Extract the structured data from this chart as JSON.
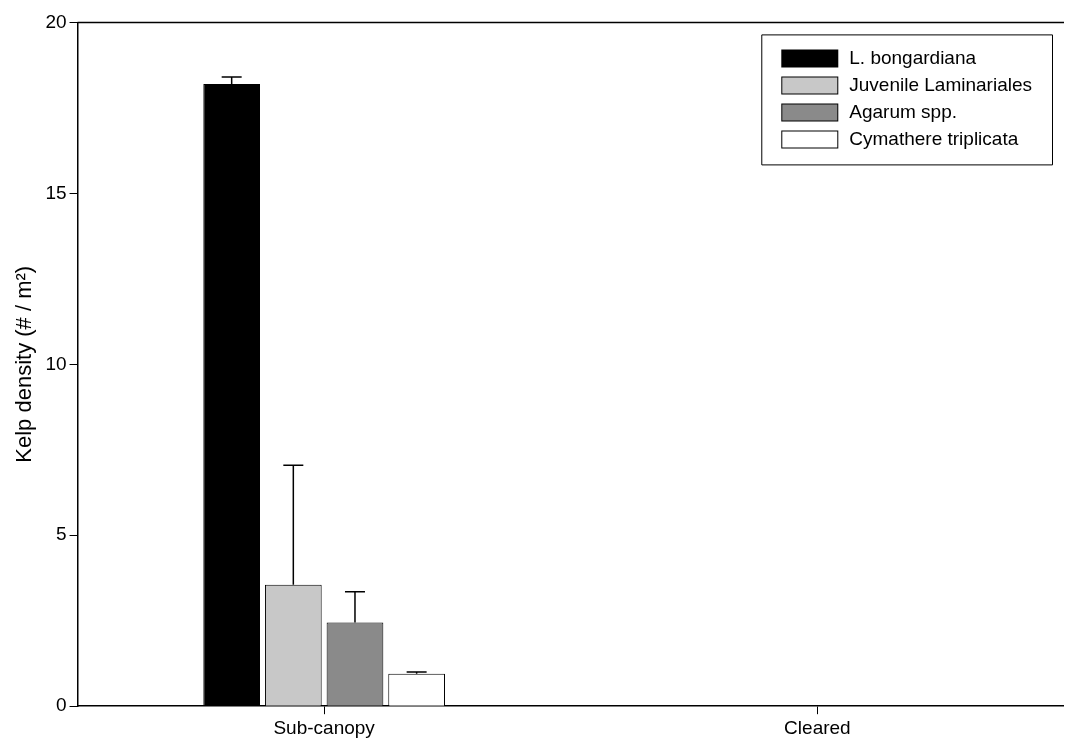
{
  "chart_data": {
    "type": "bar",
    "categories": [
      "Sub-canopy",
      "Cleared"
    ],
    "ylabel": "Kelp density (# / m²)",
    "ylim": [
      0,
      20
    ],
    "yticks": [
      0,
      5,
      10,
      15,
      20
    ],
    "grid": false,
    "legend": "top right",
    "series": [
      {
        "name": "L. bongardiana",
        "color": "#000000",
        "values": [
          18.2,
          0
        ],
        "errors": [
          0.2,
          null
        ]
      },
      {
        "name": "Juvenile Laminariales",
        "color": "#c8c8c8",
        "values": [
          3.55,
          0
        ],
        "errors": [
          3.5,
          null
        ]
      },
      {
        "name": "Agarum spp.",
        "color": "#8a8a8a",
        "values": [
          2.45,
          0
        ],
        "errors": [
          0.9,
          null
        ]
      },
      {
        "name": "Cymathere triplicata",
        "color": "#ffffff",
        "values": [
          0.95,
          0
        ],
        "errors": [
          0.05,
          null
        ]
      }
    ]
  }
}
